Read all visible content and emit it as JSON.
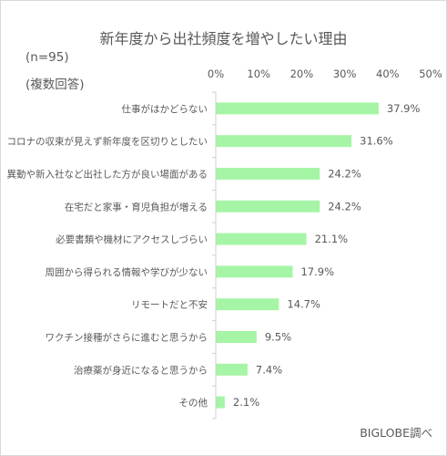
{
  "chart_data": {
    "type": "bar",
    "orientation": "horizontal",
    "title": "新年度から出社頻度を増やしたい理由",
    "notes": [
      "(n=95)",
      "(複数回答)"
    ],
    "source": "BIGLOBE調べ",
    "categories": [
      "仕事がはかどらない",
      "コロナの収束が見えず新年度を区切りとしたい",
      "異動や新入社など出社した方が良い場面がある",
      "在宅だと家事・育児負担が増える",
      "必要書類や機材にアクセスしづらい",
      "周囲から得られる情報や学びが少ない",
      "リモートだと不安",
      "ワクチン接種がさらに進むと思うから",
      "治療薬が身近になると思うから",
      "その他"
    ],
    "values": [
      37.9,
      31.6,
      24.2,
      24.2,
      21.1,
      17.9,
      14.7,
      9.5,
      7.4,
      2.1
    ],
    "value_labels": [
      "37.9%",
      "31.6%",
      "24.2%",
      "24.2%",
      "21.1%",
      "17.9%",
      "14.7%",
      "9.5%",
      "7.4%",
      "2.1%"
    ],
    "xlim": [
      0,
      50
    ],
    "xticks": [
      0,
      10,
      20,
      30,
      40,
      50
    ],
    "xtick_labels": [
      "0%",
      "10%",
      "20%",
      "30%",
      "40%",
      "50%"
    ],
    "axis_position": "top",
    "grid": false,
    "colors": {
      "bar": "#a6f5a6",
      "axis": "#d0d0d0",
      "text": "#595959"
    }
  }
}
